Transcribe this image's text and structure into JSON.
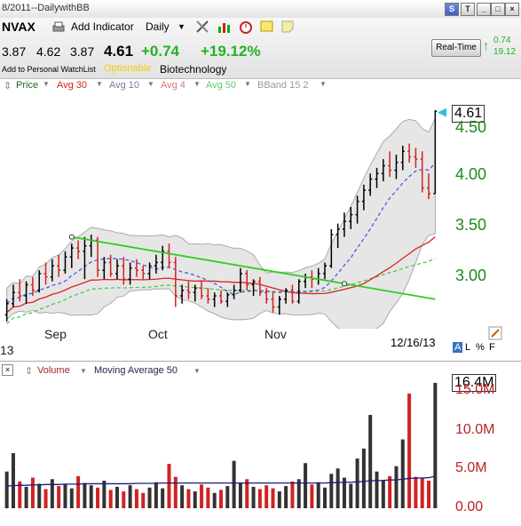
{
  "window": {
    "title": "8/2011--DailywithBB"
  },
  "toolbar": {
    "symbol": "NVAX",
    "add_indicator": "Add Indicator",
    "period": "Daily"
  },
  "quote": {
    "open": "3.87",
    "high": "4.62",
    "low": "3.87",
    "last": "4.61",
    "change": "+0.74",
    "change_pct": "+19.12%"
  },
  "links": {
    "watchlist": "Add to Personal WatchList",
    "optionable": "Optionable",
    "sector": "Biotechnology"
  },
  "realtime": {
    "button": "Real-Time",
    "v1": "0.74",
    "v2": "19.12"
  },
  "legend": {
    "price": "Price",
    "avg30": "Avg 30",
    "avg10": "Avg 10",
    "avg4": "Avg 4",
    "avg50": "Avg 50",
    "bband": "BBand 15 2"
  },
  "price_axis": {
    "last_label": "4.61",
    "labels": [
      "4.50",
      "4.00",
      "3.50",
      "3.00"
    ]
  },
  "months": [
    "Sep",
    "Oct",
    "Nov"
  ],
  "year_fragment": "13",
  "date_label": "12/16/13",
  "panel_controls": [
    "A",
    "L",
    "%",
    "F"
  ],
  "volume": {
    "title": "Volume",
    "ma_label": "Moving Average 50",
    "last_label": "16.4M",
    "axis_labels": [
      "15.0M",
      "10.0M",
      "5.0M",
      "0.00"
    ]
  },
  "colors": {
    "up_bar": "#000000",
    "down_bar": "#d22222",
    "avg30": "#dd2222",
    "avg10": "#5555dd",
    "avg50": "#44cc44",
    "trendline": "#33cc22",
    "bband_fill": "#e6e6e6"
  },
  "chart_data": {
    "type": "ohlc",
    "title": "NVAX",
    "ylim": [
      2.75,
      4.7
    ],
    "x_months": [
      "Sep",
      "Oct",
      "Nov"
    ],
    "ohlc": [
      [
        2.78,
        2.92,
        2.72,
        2.88
      ],
      [
        2.88,
        3.05,
        2.85,
        2.98
      ],
      [
        2.98,
        3.1,
        2.9,
        2.95
      ],
      [
        2.95,
        3.08,
        2.88,
        3.05
      ],
      [
        3.05,
        3.12,
        2.95,
        3.0
      ],
      [
        3.0,
        3.18,
        2.98,
        3.15
      ],
      [
        3.15,
        3.25,
        3.05,
        3.12
      ],
      [
        3.12,
        3.28,
        3.08,
        3.22
      ],
      [
        3.22,
        3.32,
        3.12,
        3.18
      ],
      [
        3.18,
        3.35,
        3.15,
        3.3
      ],
      [
        3.3,
        3.42,
        3.2,
        3.38
      ],
      [
        3.38,
        3.45,
        3.28,
        3.35
      ],
      [
        3.35,
        3.48,
        3.1,
        3.4
      ],
      [
        3.4,
        3.5,
        3.3,
        3.45
      ],
      [
        3.45,
        3.48,
        3.12,
        3.18
      ],
      [
        3.18,
        3.3,
        3.1,
        3.25
      ],
      [
        3.25,
        3.32,
        3.12,
        3.15
      ],
      [
        3.15,
        3.28,
        3.1,
        3.22
      ],
      [
        3.22,
        3.3,
        3.05,
        3.1
      ],
      [
        3.1,
        3.25,
        3.05,
        3.2
      ],
      [
        3.2,
        3.28,
        3.12,
        3.18
      ],
      [
        3.18,
        3.22,
        3.1,
        3.15
      ],
      [
        3.15,
        3.25,
        3.1,
        3.22
      ],
      [
        3.22,
        3.32,
        3.15,
        3.25
      ],
      [
        3.25,
        3.4,
        3.18,
        3.35
      ],
      [
        3.35,
        3.42,
        3.2,
        3.25
      ],
      [
        3.25,
        3.3,
        2.85,
        2.95
      ],
      [
        2.95,
        3.05,
        2.88,
        3.0
      ],
      [
        3.0,
        3.08,
        2.92,
        2.98
      ],
      [
        2.98,
        3.05,
        2.9,
        3.02
      ],
      [
        3.02,
        3.08,
        2.92,
        2.95
      ],
      [
        2.95,
        3.02,
        2.88,
        2.92
      ],
      [
        2.92,
        2.98,
        2.85,
        2.95
      ],
      [
        2.95,
        3.0,
        2.88,
        2.9
      ],
      [
        2.9,
        2.98,
        2.85,
        2.96
      ],
      [
        2.96,
        3.05,
        2.92,
        3.0
      ],
      [
        3.0,
        3.2,
        2.98,
        3.15
      ],
      [
        3.15,
        3.18,
        3.0,
        3.05
      ],
      [
        3.05,
        3.1,
        2.95,
        3.08
      ],
      [
        3.08,
        3.12,
        2.95,
        2.98
      ],
      [
        2.98,
        3.02,
        2.88,
        2.92
      ],
      [
        2.92,
        2.98,
        2.8,
        2.85
      ],
      [
        2.85,
        2.95,
        2.78,
        2.92
      ],
      [
        2.92,
        3.02,
        2.88,
        3.0
      ],
      [
        3.0,
        3.05,
        2.88,
        2.9
      ],
      [
        2.9,
        3.1,
        2.88,
        3.08
      ],
      [
        3.08,
        3.15,
        3.02,
        3.12
      ],
      [
        3.12,
        3.18,
        3.02,
        3.1
      ],
      [
        3.1,
        3.2,
        3.05,
        3.15
      ],
      [
        3.15,
        3.25,
        3.1,
        3.22
      ],
      [
        3.22,
        3.55,
        3.2,
        3.5
      ],
      [
        3.5,
        3.6,
        3.38,
        3.55
      ],
      [
        3.55,
        3.7,
        3.48,
        3.62
      ],
      [
        3.62,
        3.75,
        3.55,
        3.68
      ],
      [
        3.68,
        3.85,
        3.6,
        3.8
      ],
      [
        3.8,
        3.95,
        3.72,
        3.9
      ],
      [
        3.9,
        4.05,
        3.85,
        4.0
      ],
      [
        4.0,
        4.1,
        3.92,
        4.05
      ],
      [
        4.05,
        4.18,
        3.98,
        4.12
      ],
      [
        4.12,
        4.25,
        4.02,
        4.08
      ],
      [
        4.08,
        4.22,
        4.0,
        4.15
      ],
      [
        4.15,
        4.3,
        4.08,
        4.25
      ],
      [
        4.25,
        4.32,
        4.15,
        4.2
      ],
      [
        4.2,
        4.28,
        4.1,
        4.18
      ],
      [
        4.18,
        4.25,
        3.88,
        3.92
      ],
      [
        3.92,
        4.05,
        3.82,
        3.87
      ],
      [
        3.87,
        4.62,
        3.87,
        4.61
      ]
    ],
    "volume_m": [
      4.8,
      7.2,
      3.5,
      2.8,
      4.0,
      3.2,
      2.5,
      3.8,
      2.9,
      3.1,
      2.6,
      4.2,
      3.3,
      3.0,
      2.7,
      3.6,
      2.4,
      2.8,
      2.2,
      3.0,
      2.5,
      2.0,
      2.7,
      3.4,
      2.6,
      5.8,
      4.1,
      3.0,
      2.5,
      2.2,
      3.1,
      2.7,
      2.0,
      2.4,
      2.9,
      6.2,
      3.3,
      3.8,
      2.8,
      2.5,
      3.0,
      2.6,
      2.2,
      2.9,
      3.5,
      3.8,
      5.9,
      3.1,
      3.4,
      2.7,
      4.5,
      5.2,
      4.0,
      3.2,
      6.5,
      7.8,
      12.2,
      4.8,
      3.6,
      4.2,
      5.5,
      9.0,
      15.0,
      4.1,
      3.9,
      3.6,
      16.4
    ],
    "volume_ma50": [
      2.9,
      2.95,
      3.0,
      3.0,
      3.05,
      3.05,
      3.1,
      3.1,
      3.1,
      3.15,
      3.15,
      3.15,
      3.2,
      3.2,
      3.2,
      3.2,
      3.2,
      3.2,
      3.2,
      3.2,
      3.25,
      3.25,
      3.25,
      3.25,
      3.3,
      3.3,
      3.3,
      3.3,
      3.3,
      3.3,
      3.3,
      3.3,
      3.3,
      3.3,
      3.3,
      3.3,
      3.3,
      3.3,
      3.3,
      3.3,
      3.3,
      3.3,
      3.3,
      3.3,
      3.3,
      3.3,
      3.3,
      3.3,
      3.3,
      3.3,
      3.35,
      3.35,
      3.4,
      3.4,
      3.45,
      3.5,
      3.6,
      3.6,
      3.65,
      3.7,
      3.7,
      3.8,
      3.9,
      3.95,
      3.95,
      4.0,
      4.2
    ],
    "volume_ylim": [
      0,
      16.5
    ],
    "trendline": [
      [
        10,
        3.48
      ],
      [
        66,
        2.92
      ]
    ]
  }
}
